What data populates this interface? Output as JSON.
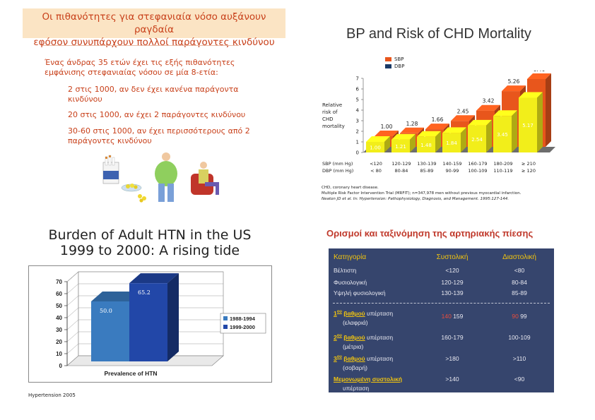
{
  "top_left": {
    "banner_line1": "Οι πιθανότητες για στεφανιαία νόσο αυξάνουν ραγδαία",
    "banner_line2": "εφόσον συνυπάρχουν πολλοί παράγοντες κινδύνου",
    "intro_line1": "Ένας άνδρας 35 ετών έχει τις εξής πιθανότητες",
    "intro_line2": "εμφάνισης στεφανιαίας νόσου σε μία 8-ετία:",
    "risk1_line1": "2 στις 1000, αν δεν έχει κανένα παράγοντα",
    "risk1_line2": "κινδύνου",
    "risk2": "20 στις 1000, αν έχει 2 παράγοντες κινδύνου",
    "risk3_line1": "30-60 στις 1000, αν έχει περισσότερους από 2",
    "risk3_line2": "παράγοντες κινδύνου"
  },
  "bp_chart": {
    "title": "BP and Risk of CHD Mortality",
    "legend_sbp": "SBP",
    "legend_dbp": "DBP",
    "ylabel_l1": "Relative",
    "ylabel_l2": "risk of",
    "ylabel_l3": "CHD",
    "ylabel_l4": "mortality",
    "sbp_label": "SBP (mm Hg)",
    "dbp_label": "DBP (mm Hg)",
    "foot1": "CHD, coronary heart disease.",
    "foot2": "Multiple Risk Factor Intervention Trial (MRFIT); n=347,978 men without previous myocardial infarction.",
    "foot3": "Neaton JD et al. In: Hypertension: Pathophysiology, Diagnosis, and Management. 1995:127-144."
  },
  "htn_chart": {
    "title_line1": "Burden of Adult HTN in the US",
    "title_line2": "1999 to 2000: A rising tide",
    "footer": "Hypertension 2005"
  },
  "bp_table": {
    "title": "Ορισμοί και ταξινόμηση της αρτηριακής πίεσης",
    "h_cat": "Κατηγορία",
    "h_sys": "Συστολική",
    "h_dia": "Διαστολική",
    "r1_cat": "Βέλτιστη",
    "r1_sys": "<120",
    "r1_dia": "<80",
    "r2_cat": "Φυσιολογική",
    "r2_sys": "120-129",
    "r2_dia": "80-84",
    "r3_cat": "Υψηλή φυσιολογική",
    "r3_sys": "130-139",
    "r3_dia": "85-89",
    "g1_pre": "1",
    "g1_sup": "ου",
    "g1_grade": "βαθμού",
    "g1_rest": " υπέρταση",
    "g1_sub": "(ελαφριά)",
    "g1_sys_red": "140",
    "g1_sys": "159",
    "g1_dia_red": "90",
    "g1_dia": "99",
    "g2_pre": "2",
    "g2_sup": "ου",
    "g2_grade": "βαθμού",
    "g2_rest": " υπέρταση",
    "g2_sub": "(μέτρια)",
    "g2_sys": "160-179",
    "g2_dia": "100-109",
    "g3_pre": "3",
    "g3_sup": "ου",
    "g3_grade": "βαθμού",
    "g3_rest": " υπέρταση",
    "g3_sub": "(σοβαρή)",
    "g3_sys": ">180",
    "g3_dia": ">110",
    "iso_grade": "Μεμονωμένη συστολική",
    "iso_sub": "υπέρταση",
    "iso_sys": ">140",
    "iso_dia": "<90"
  },
  "chart_data": [
    {
      "type": "bar",
      "title": "BP and Risk of CHD Mortality",
      "ylabel": "Relative risk of CHD mortality",
      "ylim": [
        0,
        7
      ],
      "yticks": [
        "0",
        "1",
        "2",
        "3",
        "4",
        "5",
        "6",
        "7"
      ],
      "categories_sbp": [
        "<120",
        "120-129",
        "130-139",
        "140-159",
        "160-179",
        "180-209",
        "≥ 210"
      ],
      "categories_dbp": [
        "< 80",
        "80-84",
        "85-89",
        "90-99",
        "100-109",
        "110-119",
        "≥ 120"
      ],
      "series": [
        {
          "name": "SBP",
          "color": "#e8561c",
          "values": [
            1.0,
            1.28,
            1.66,
            2.45,
            3.42,
            5.26,
            6.4
          ],
          "labels": [
            "1.00",
            "1.28",
            "1.66",
            "2.45",
            "3.42",
            "5.26",
            "6.40"
          ]
        },
        {
          "name": "DBP",
          "color": "#f2ee1a",
          "values": [
            1.0,
            1.21,
            1.48,
            1.84,
            2.54,
            3.45,
            5.17
          ],
          "labels": [
            "1.00",
            "1.21",
            "1.48",
            "1.84",
            "2.54",
            "3.45",
            "5.17"
          ]
        }
      ]
    },
    {
      "type": "bar",
      "title": "Burden of Adult HTN in the US 1999 to 2000: A rising tide",
      "xlabel": "Prevalence of HTN",
      "ylim": [
        0,
        70
      ],
      "yticks": [
        "0",
        "10",
        "20",
        "30",
        "40",
        "50",
        "60",
        "70"
      ],
      "series": [
        {
          "name": "1988-1994",
          "color": "#3a7bbf",
          "values": [
            50.0
          ],
          "label": "50.0"
        },
        {
          "name": "1999-2000",
          "color": "#2247a8",
          "values": [
            65.2
          ],
          "label": "65.2"
        }
      ]
    }
  ]
}
